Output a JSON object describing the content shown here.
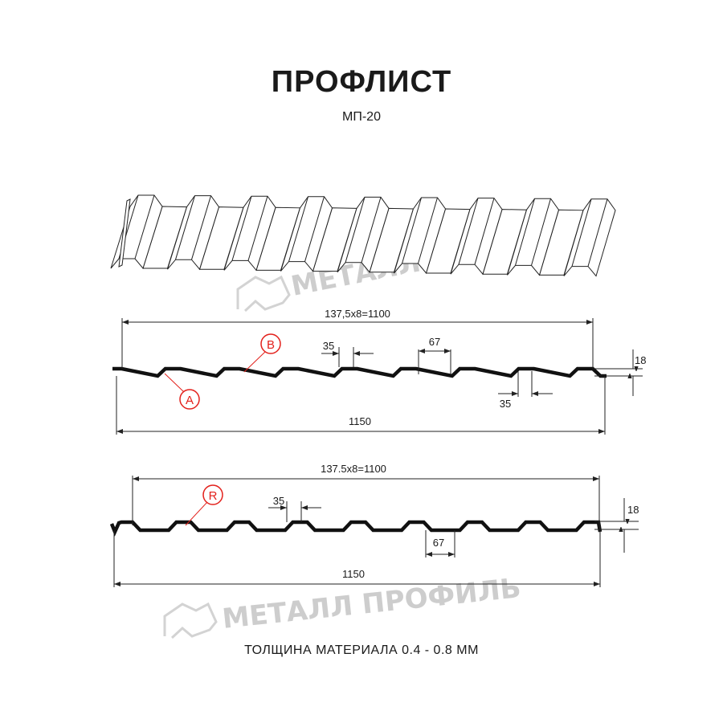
{
  "header": {
    "title": "ПРОФЛИСТ",
    "subtitle": "МП-20"
  },
  "watermark": {
    "text": "МЕТАЛЛ ПРОФИЛЬ"
  },
  "profile_a": {
    "pitch_label": "137,5x8=1100",
    "width_label": "1150",
    "crest_label": "35",
    "valley_label": "67",
    "crest_label_2": "35",
    "height_label": "18",
    "marker_a": "A",
    "marker_b": "B"
  },
  "profile_r": {
    "pitch_label": "137.5x8=1100",
    "width_label": "1150",
    "crest_label": "35",
    "valley_label": "67",
    "height_label": "18",
    "marker_r": "R"
  },
  "footer": {
    "thickness": "ТОЛЩИНА МАТЕРИАЛА 0.4 - 0.8 ММ"
  },
  "colors": {
    "marker": "#e3211c",
    "line": "#111111",
    "watermark": "#bdbdbd"
  }
}
